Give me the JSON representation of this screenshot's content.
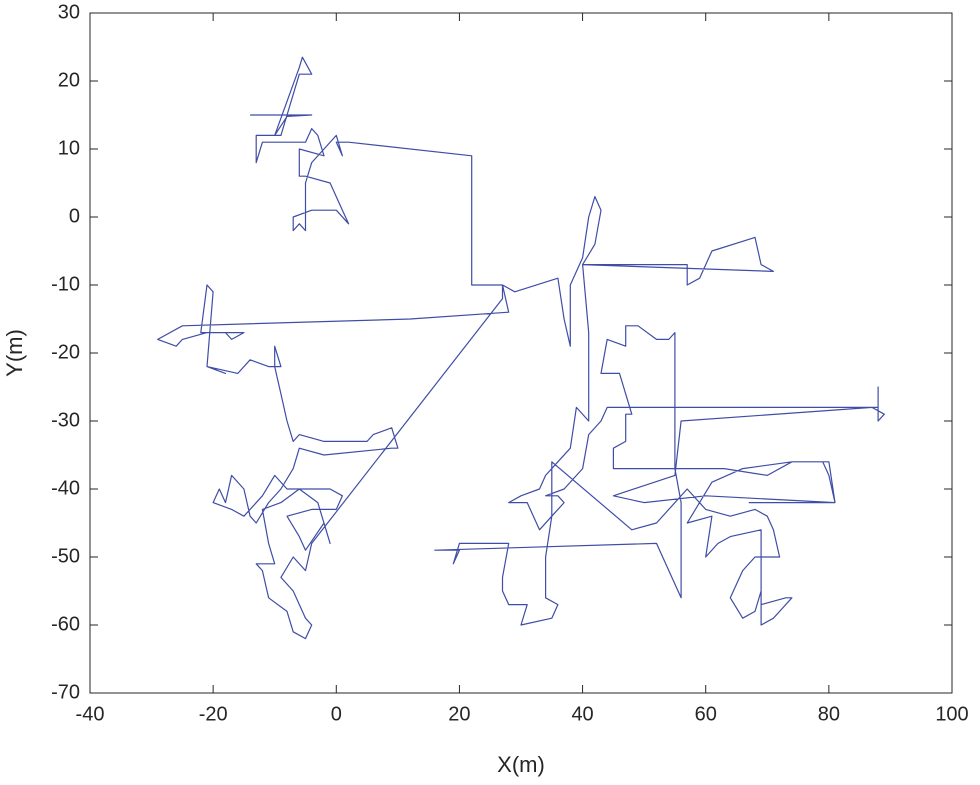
{
  "chart_data": {
    "type": "line",
    "x_label": "X(m)",
    "y_label": "Y(m)",
    "xlim": [
      -40,
      100
    ],
    "ylim": [
      -70,
      30
    ],
    "xticks": [
      -40,
      -20,
      0,
      20,
      40,
      60,
      80,
      100
    ],
    "yticks": [
      -70,
      -60,
      -50,
      -40,
      -30,
      -20,
      -10,
      0,
      10,
      20,
      30
    ],
    "grid": false,
    "series": [
      {
        "color": "#3f4da6",
        "x": [
          -14,
          -4,
          -8,
          -10,
          -6,
          -5.5,
          -4,
          -6,
          -9,
          -13,
          -13,
          -12,
          -5,
          -4,
          -3,
          -2,
          -6,
          -6,
          -5,
          -1,
          1,
          2,
          0,
          -4,
          -7,
          -7,
          -6,
          -5,
          -5,
          -4,
          0,
          1,
          0,
          2,
          22,
          22,
          27,
          28,
          12,
          -25,
          -29,
          -26,
          -25,
          -21,
          -18,
          -17,
          -15,
          -22,
          -21,
          -20,
          -21,
          -18,
          -21,
          -16,
          -14,
          -11,
          -9,
          -10,
          -10,
          -9,
          -8,
          -7,
          -6,
          -2,
          5,
          6,
          9,
          10,
          9,
          -2,
          -6,
          -7,
          -9,
          -11,
          -13,
          -14,
          -15,
          -17,
          -18,
          -19,
          -20,
          -17,
          -15,
          -12,
          -10,
          -8,
          -5,
          -1,
          1,
          0,
          -4,
          -8,
          -6,
          -5,
          -2,
          -1,
          -3,
          -6,
          -9,
          -12,
          -11,
          -10,
          -13,
          -12,
          -11,
          -8,
          -7,
          -5,
          -4,
          -5,
          -7,
          -9,
          -7,
          -5,
          -4,
          27,
          27,
          29,
          36,
          37,
          38,
          38,
          40,
          41,
          42,
          43,
          42,
          40,
          71,
          69,
          68,
          61,
          59,
          57,
          57,
          40,
          41,
          41,
          39,
          38,
          36,
          34,
          33,
          30,
          28,
          31,
          33,
          35,
          37,
          36,
          34,
          37,
          40,
          41,
          43,
          44,
          88,
          88,
          88,
          89,
          87,
          56,
          55,
          45,
          50,
          60,
          81,
          80,
          79,
          74,
          70,
          63,
          45,
          45,
          47,
          47,
          48,
          46,
          43,
          44,
          47,
          47,
          49,
          52,
          54,
          55,
          55,
          56,
          56,
          52,
          16,
          20,
          19,
          20,
          28,
          27,
          27,
          28,
          31,
          30,
          35,
          36,
          34,
          34,
          35,
          35,
          48,
          52,
          57,
          60,
          64,
          68,
          70,
          71,
          72,
          68,
          66,
          64,
          66,
          68,
          69,
          69,
          71,
          72,
          74,
          73,
          69,
          69,
          64,
          62,
          60,
          61,
          57,
          61,
          66,
          74,
          80,
          81,
          67
        ],
        "values": [
          15,
          15,
          14.8,
          12,
          22,
          23.5,
          21,
          21,
          12,
          12,
          8,
          11,
          11,
          13,
          12,
          9,
          10,
          6,
          6,
          5,
          1,
          -1,
          1,
          1,
          0,
          -2,
          -1,
          -2,
          5,
          8,
          12,
          9,
          11,
          11,
          9,
          -10,
          -10,
          -14,
          -15,
          -16,
          -18,
          -19,
          -18,
          -17,
          -17,
          -18,
          -17,
          -17,
          -10,
          -11,
          -22,
          -23,
          -22,
          -23,
          -21,
          -22,
          -22,
          -19,
          -22,
          -26,
          -30,
          -33,
          -32,
          -33,
          -33,
          -32,
          -31,
          -34,
          -34,
          -35,
          -34,
          -37,
          -40,
          -42,
          -45,
          -44,
          -40,
          -38,
          -42,
          -40,
          -42,
          -43,
          -44,
          -41,
          -38,
          -40,
          -40,
          -40,
          -41,
          -43,
          -43,
          -44,
          -47,
          -49,
          -45,
          -48,
          -42,
          -40,
          -42,
          -43,
          -48,
          -51,
          -51,
          -52,
          -56,
          -58,
          -61,
          -62,
          -60,
          -59,
          -55,
          -53,
          -50,
          -52,
          -48,
          -12,
          -10,
          -11,
          -9,
          -15,
          -19,
          -10,
          -6,
          0,
          3,
          1,
          -4,
          -7,
          -8,
          -7,
          -3,
          -5,
          -9,
          -10,
          -7,
          -7,
          -17,
          -30,
          -28,
          -34,
          -36,
          -38,
          -40,
          -41,
          -42,
          -42,
          -46,
          -44,
          -42,
          -41,
          -41,
          -40,
          -37,
          -32,
          -30,
          -28,
          -28,
          -25,
          -30,
          -29,
          -28,
          -30,
          -38,
          -41,
          -42,
          -41,
          -42,
          -38,
          -36,
          -36,
          -38,
          -37,
          -37,
          -34,
          -33,
          -29,
          -29,
          -23,
          -23,
          -18,
          -19,
          -16,
          -16,
          -18,
          -18,
          -17,
          -37,
          -42,
          -56,
          -48,
          -49,
          -49,
          -51,
          -48,
          -48,
          -53,
          -55,
          -57,
          -57,
          -60,
          -59,
          -57,
          -56,
          -50,
          -44,
          -36,
          -46,
          -45,
          -40,
          -43,
          -44,
          -43,
          -44,
          -46,
          -50,
          -50,
          -52,
          -56,
          -59,
          -58,
          -55,
          -60,
          -59,
          -58,
          -56,
          -56,
          -57,
          -46,
          -47,
          -48,
          -50,
          -44,
          -45,
          -39,
          -37,
          -36,
          -36,
          -42,
          -42
        ]
      }
    ]
  }
}
